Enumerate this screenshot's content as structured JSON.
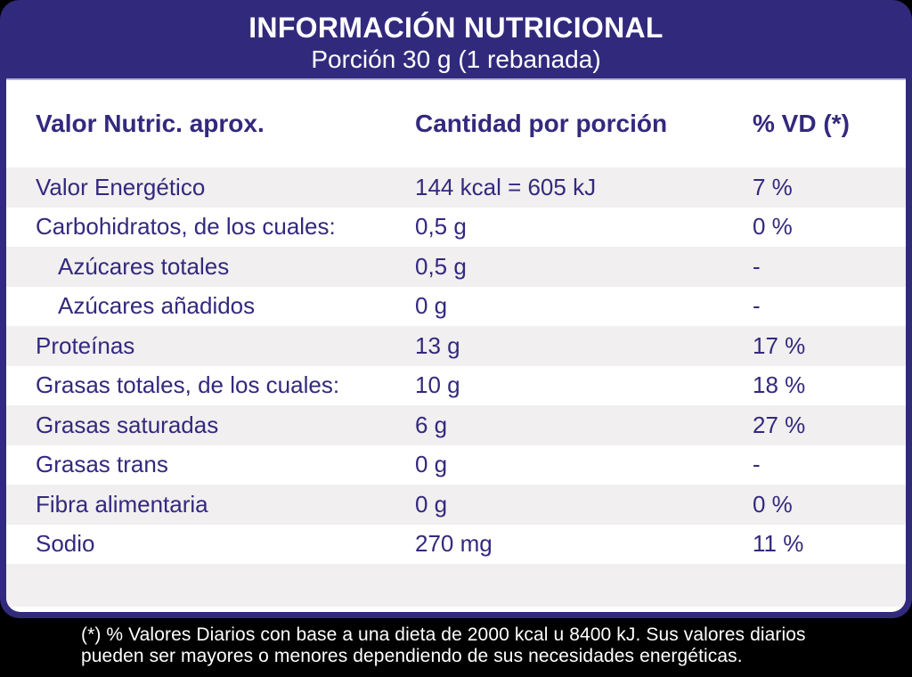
{
  "header": {
    "title": "INFORMACIÓN NUTRICIONAL",
    "subtitle": "Porción 30 g (1 rebanada)"
  },
  "table": {
    "columns": {
      "nutrient": "Valor Nutric. aprox.",
      "amount": "Cantidad por porción",
      "vd": "% VD (*)"
    },
    "rows": [
      {
        "label": "Valor Energético",
        "amount": "144 kcal = 605 kJ",
        "vd": "7 %",
        "indent": false
      },
      {
        "label": "Carbohidratos, de los cuales:",
        "amount": "0,5 g",
        "vd": "0 %",
        "indent": false
      },
      {
        "label": "Azúcares totales",
        "amount": "0,5 g",
        "vd": "-",
        "indent": true
      },
      {
        "label": "Azúcares añadidos",
        "amount": "0 g",
        "vd": "-",
        "indent": true
      },
      {
        "label": "Proteínas",
        "amount": "13 g",
        "vd": "17 %",
        "indent": false
      },
      {
        "label": "Grasas totales, de los cuales:",
        "amount": "10 g",
        "vd": "18 %",
        "indent": false
      },
      {
        "label": "Grasas saturadas",
        "amount": "6 g",
        "vd": "27 %",
        "indent": false
      },
      {
        "label": "Grasas trans",
        "amount": "0 g",
        "vd": "-",
        "indent": false
      },
      {
        "label": "Fibra alimentaria",
        "amount": "0 g",
        "vd": "0 %",
        "indent": false
      },
      {
        "label": "Sodio",
        "amount": "270 mg",
        "vd": "11 %",
        "indent": false
      }
    ]
  },
  "footnote": {
    "line1": "(*) % Valores Diarios con base a una dieta de 2000 kcal u 8400 kJ. Sus valores diarios",
    "line2": "pueden ser mayores o menores dependiendo de sus necesidades energéticas."
  },
  "colors": {
    "navy": "#312A7C",
    "text": "#33297D",
    "row_alt": "#F1EFF0",
    "background": "#000000",
    "header_text": "#FFFFFF"
  }
}
